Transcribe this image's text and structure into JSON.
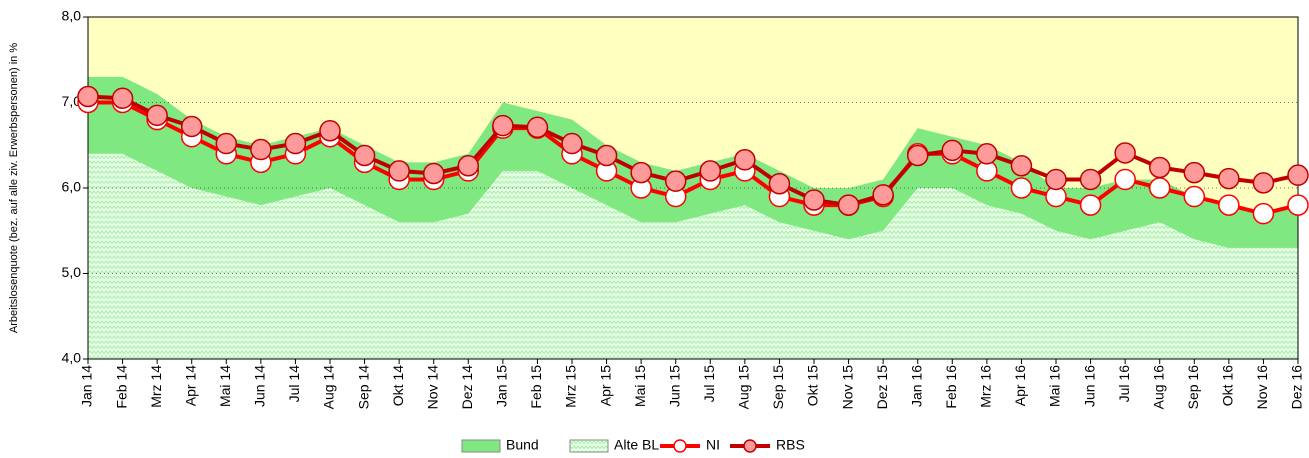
{
  "chart_data": {
    "type": "line",
    "y_label": "Arbeitslosenquote (bez. auf alle ziv. Erwerbspersonen) in %",
    "categories": [
      "Jan 14",
      "Feb 14",
      "Mrz 14",
      "Apr 14",
      "Mai 14",
      "Jun 14",
      "Jul 14",
      "Aug 14",
      "Sep 14",
      "Okt 14",
      "Nov 14",
      "Dez 14",
      "Jan 15",
      "Feb 15",
      "Mrz 15",
      "Apr 15",
      "Mai 15",
      "Jun 15",
      "Jul 15",
      "Aug 15",
      "Sep 15",
      "Okt 15",
      "Nov 15",
      "Dez 15",
      "Jan 16",
      "Feb 16",
      "Mrz 16",
      "Apr 16",
      "Mai 16",
      "Jun 16",
      "Jul 16",
      "Aug 16",
      "Sep 16",
      "Okt 16",
      "Nov 16",
      "Dez 16"
    ],
    "ylim": [
      4,
      8
    ],
    "yticks": [
      {
        "value": 4,
        "label": "4,0"
      },
      {
        "value": 5,
        "label": "5,0"
      },
      {
        "value": 6,
        "label": "6,0"
      },
      {
        "value": 7,
        "label": "7,0"
      },
      {
        "value": 8,
        "label": "8,0"
      }
    ],
    "grid": true,
    "background": "#ffffc0",
    "series": [
      {
        "name": "Bund",
        "type": "area",
        "color": "#80e880",
        "values": [
          7.3,
          7.3,
          7.1,
          6.8,
          6.6,
          6.5,
          6.6,
          6.7,
          6.5,
          6.3,
          6.3,
          6.4,
          7.0,
          6.9,
          6.8,
          6.5,
          6.3,
          6.2,
          6.3,
          6.4,
          6.2,
          6.0,
          6.0,
          6.1,
          6.7,
          6.6,
          6.5,
          6.3,
          6.0,
          6.0,
          6.1,
          6.1,
          5.9,
          5.8,
          5.7,
          5.8
        ]
      },
      {
        "name": "Alte BL",
        "type": "area",
        "color": "#d8ffd8",
        "pattern": true,
        "values": [
          6.4,
          6.4,
          6.2,
          6.0,
          5.9,
          5.8,
          5.9,
          6.0,
          5.8,
          5.6,
          5.6,
          5.7,
          6.2,
          6.2,
          6.0,
          5.8,
          5.6,
          5.6,
          5.7,
          5.8,
          5.6,
          5.5,
          5.4,
          5.5,
          6.0,
          6.0,
          5.8,
          5.7,
          5.5,
          5.4,
          5.5,
          5.6,
          5.4,
          5.3,
          5.3,
          5.3
        ]
      },
      {
        "name": "NI",
        "type": "line",
        "color": "#ff0000",
        "marker_fill": "#ffffff",
        "values": [
          7.0,
          7.0,
          6.8,
          6.6,
          6.4,
          6.3,
          6.4,
          6.6,
          6.3,
          6.1,
          6.1,
          6.2,
          6.7,
          6.7,
          6.4,
          6.2,
          6.0,
          5.9,
          6.1,
          6.2,
          5.9,
          5.8,
          5.8,
          5.9,
          6.4,
          6.4,
          6.2,
          6.0,
          5.9,
          5.8,
          6.1,
          6.0,
          5.9,
          5.8,
          5.7,
          5.8
        ]
      },
      {
        "name": "RBS",
        "type": "line",
        "color": "#c00000",
        "marker_fill": "#ff9a9a",
        "values": [
          7.07,
          7.05,
          6.85,
          6.72,
          6.52,
          6.45,
          6.52,
          6.67,
          6.38,
          6.2,
          6.17,
          6.26,
          6.73,
          6.71,
          6.52,
          6.38,
          6.18,
          6.08,
          6.2,
          6.33,
          6.05,
          5.86,
          5.8,
          5.92,
          6.38,
          6.44,
          6.4,
          6.26,
          6.1,
          6.1,
          6.41,
          6.24,
          6.18,
          6.11,
          6.06,
          6.15
        ]
      }
    ]
  }
}
